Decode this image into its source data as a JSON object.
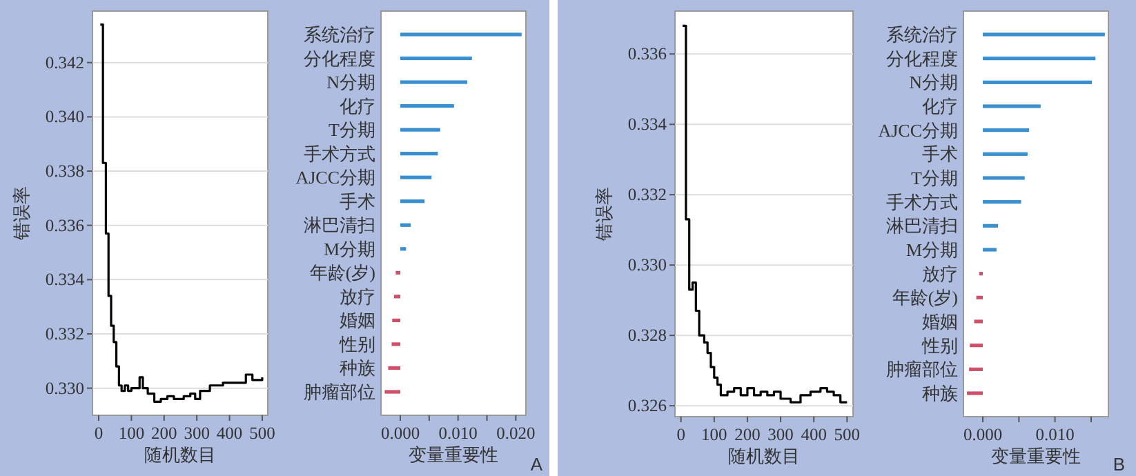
{
  "chart_data": [
    {
      "type": "step",
      "xlabel": "随机数目",
      "ylabel": "错误率",
      "grid": "y",
      "xlim": [
        -19,
        517
      ],
      "ylim": [
        0.329,
        0.3439
      ],
      "xticks": [
        0,
        100,
        200,
        300,
        400,
        500
      ],
      "yticks": [
        {
          "value": 0.33,
          "label": "0.330"
        },
        {
          "value": 0.332,
          "label": "0.332"
        },
        {
          "value": 0.334,
          "label": "0.334"
        },
        {
          "value": 0.336,
          "label": "0.336"
        },
        {
          "value": 0.338,
          "label": "0.338"
        },
        {
          "value": 0.34,
          "label": "0.340"
        },
        {
          "value": 0.342,
          "label": "0.342"
        }
      ],
      "x": [
        5,
        13,
        22,
        30,
        38,
        46,
        54,
        62,
        70,
        80,
        90,
        100,
        115,
        125,
        135,
        150,
        170,
        190,
        210,
        230,
        260,
        280,
        295,
        310,
        340,
        360,
        380,
        420,
        450,
        470,
        500
      ],
      "series": [
        {
          "color": "#000000",
          "values": [
            0.3434,
            0.3383,
            0.3357,
            0.3334,
            0.3323,
            0.3317,
            0.3308,
            0.3301,
            0.3299,
            0.3301,
            0.3299,
            0.33,
            0.33,
            0.3304,
            0.33,
            0.3298,
            0.3295,
            0.3296,
            0.3297,
            0.3296,
            0.3297,
            0.3298,
            0.3296,
            0.3299,
            0.3301,
            0.3301,
            0.3302,
            0.3302,
            0.3305,
            0.3303,
            0.3304
          ]
        }
      ]
    },
    {
      "type": "bar",
      "orientation": "horizontal",
      "xlabel": "变量重要性",
      "annotations": [
        "A"
      ],
      "xlim": [
        -0.00335,
        0.02175
      ],
      "xticks": [
        {
          "value": 0,
          "label": "0.000"
        },
        {
          "value": 0.005,
          "label": null
        },
        {
          "value": 0.01,
          "label": "0.010"
        },
        {
          "value": 0.015,
          "label": null
        },
        {
          "value": 0.02,
          "label": "0.020"
        }
      ],
      "categories": [
        "系统治疗",
        "分化程度",
        "N分期",
        "化疗",
        "T分期",
        "手术方式",
        "AJCC分期",
        "手术",
        "淋巴清扫",
        "M分期",
        "年龄(岁)",
        "放疗",
        "婚姻",
        "性别",
        "种族",
        "肿瘤部位"
      ],
      "values": [
        0.021,
        0.0124,
        0.0116,
        0.0093,
        0.0069,
        0.0065,
        0.0054,
        0.0042,
        0.0018,
        0.001,
        -0.0008,
        -0.0011,
        -0.0014,
        -0.0015,
        -0.0021,
        -0.0027
      ],
      "colors": [
        "#3a8fd0",
        "#3a8fd0",
        "#3a8fd0",
        "#3a8fd0",
        "#3a8fd0",
        "#3a8fd0",
        "#3a8fd0",
        "#3a8fd0",
        "#3a8fd0",
        "#3a8fd0",
        "#d0506a",
        "#d0506a",
        "#d0506a",
        "#d0506a",
        "#d0506a",
        "#d0506a"
      ]
    },
    {
      "type": "step",
      "xlabel": "随机数目",
      "ylabel": "错误率",
      "grid": "y",
      "xlim": [
        -18,
        518
      ],
      "ylim": [
        0.32569,
        0.33722
      ],
      "xticks": [
        0,
        100,
        200,
        300,
        400,
        500
      ],
      "yticks": [
        {
          "value": 0.326,
          "label": "0.326"
        },
        {
          "value": 0.328,
          "label": "0.328"
        },
        {
          "value": 0.33,
          "label": "0.330"
        },
        {
          "value": 0.332,
          "label": "0.332"
        },
        {
          "value": 0.334,
          "label": "0.334"
        },
        {
          "value": 0.336,
          "label": "0.336"
        }
      ],
      "x": [
        5,
        15,
        25,
        35,
        45,
        55,
        70,
        80,
        90,
        100,
        110,
        120,
        140,
        160,
        180,
        200,
        220,
        240,
        260,
        280,
        300,
        330,
        360,
        390,
        420,
        440,
        460,
        480,
        500
      ],
      "series": [
        {
          "color": "#000000",
          "values": [
            0.3368,
            0.3313,
            0.3293,
            0.3295,
            0.3287,
            0.328,
            0.3278,
            0.3275,
            0.3271,
            0.3268,
            0.3266,
            0.3263,
            0.3264,
            0.3265,
            0.3263,
            0.3265,
            0.3263,
            0.3264,
            0.3263,
            0.3264,
            0.3262,
            0.3261,
            0.3263,
            0.3264,
            0.3265,
            0.3264,
            0.3263,
            0.3261,
            0.3261
          ]
        }
      ]
    },
    {
      "type": "bar",
      "orientation": "horizontal",
      "xlabel": "变量重要性",
      "annotations": [
        "B"
      ],
      "xlim": [
        -0.00268,
        0.01739
      ],
      "xticks": [
        {
          "value": 0,
          "label": "0.000"
        },
        {
          "value": 0.005,
          "label": null
        },
        {
          "value": 0.01,
          "label": "0.010"
        },
        {
          "value": 0.015,
          "label": null
        }
      ],
      "categories": [
        "系统治疗",
        "分化程度",
        "N分期",
        "化疗",
        "AJCC分期",
        "手术",
        "T分期",
        "手术方式",
        "淋巴清扫",
        "M分期",
        "放疗",
        "年龄(岁)",
        "婚姻",
        "性别",
        "肿瘤部位",
        "种族"
      ],
      "values": [
        0.0169,
        0.0156,
        0.0151,
        0.008,
        0.0064,
        0.0062,
        0.0058,
        0.0053,
        0.0021,
        0.0019,
        -0.0005,
        -0.0009,
        -0.0012,
        -0.0018,
        -0.0019,
        -0.0022
      ],
      "colors": [
        "#3a8fd0",
        "#3a8fd0",
        "#3a8fd0",
        "#3a8fd0",
        "#3a8fd0",
        "#3a8fd0",
        "#3a8fd0",
        "#3a8fd0",
        "#3a8fd0",
        "#3a8fd0",
        "#d0506a",
        "#d0506a",
        "#d0506a",
        "#d0506a",
        "#d0506a",
        "#d0506a"
      ]
    }
  ]
}
